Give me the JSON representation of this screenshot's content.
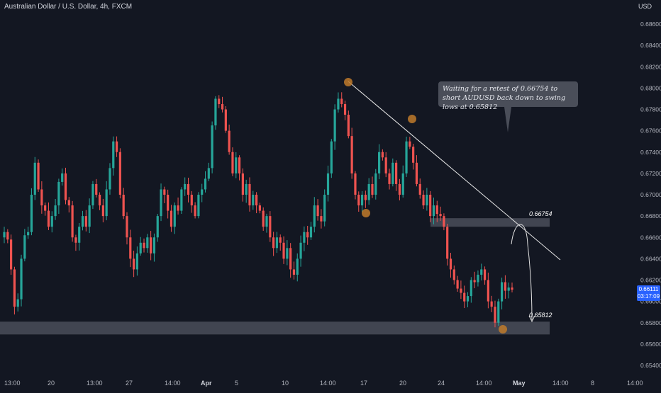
{
  "header": {
    "title": "Australian Dollar / U.S. Dollar, 4h, FXCM",
    "currency": "USD"
  },
  "price_tag": {
    "price": "0.66111",
    "countdown": "03:17:09"
  },
  "annotation": {
    "text": "Waiting for a retest of 0.66754 to short AUDUSD back down to swing lows at 0.65812"
  },
  "levels": [
    {
      "label": "0.66754",
      "value": 0.66754
    },
    {
      "label": "0.65812",
      "value": 0.65812
    }
  ],
  "colors": {
    "up": "#26a69a",
    "down": "#ef5350",
    "background": "#131722",
    "marker": "#c07a2a",
    "zone": "#4a4e59"
  },
  "chart_data": {
    "type": "candlestick",
    "symbol": "AUDUSD",
    "timeframe": "4h",
    "y_axis": {
      "ticks": [
        "0.68600",
        "0.68400",
        "0.68200",
        "0.68000",
        "0.67800",
        "0.67600",
        "0.67400",
        "0.67200",
        "0.67000",
        "0.66800",
        "0.66600",
        "0.66400",
        "0.66200",
        "0.66000",
        "0.65800",
        "0.65600",
        "0.65400"
      ],
      "ylim": [
        0.653,
        0.688
      ]
    },
    "x_axis": {
      "ticks": [
        "13:00",
        "20",
        "13:00",
        "27",
        "14:00",
        "Apr",
        "5",
        "10",
        "14:00",
        "17",
        "20",
        "24",
        "14:00",
        "May",
        "14:00",
        "8",
        "14:00"
      ],
      "bold_ticks": [
        "Apr",
        "May"
      ]
    },
    "close_price_path": [
      [
        0.6665,
        0.6658,
        0.663,
        0.6595,
        0.6602,
        0.664,
        0.6662,
        0.6665,
        0.67,
        0.673,
        0.6705,
        0.669,
        0.6685,
        0.667,
        0.668,
        0.669,
        0.6712,
        0.672,
        0.6695,
        0.669,
        0.666,
        0.6655,
        0.667,
        0.668,
        0.667,
        0.669,
        0.671,
        0.67,
        0.669,
        0.668
      ],
      [
        0.6705,
        0.6725,
        0.675,
        0.674,
        0.67,
        0.668,
        0.666,
        0.664,
        0.663,
        0.6645,
        0.6655,
        0.665,
        0.666,
        0.6645,
        0.666,
        0.668,
        0.6705,
        0.67,
        0.6685,
        0.667,
        0.669,
        0.6685,
        0.6705,
        0.671,
        0.67,
        0.669,
        0.668,
        0.67,
        0.6705,
        0.6715
      ],
      [
        0.6725,
        0.6765,
        0.679,
        0.6785,
        0.678,
        0.676,
        0.674,
        0.672,
        0.6735,
        0.672,
        0.67,
        0.671,
        0.669,
        0.67,
        0.669,
        0.6685,
        0.667,
        0.668,
        0.666,
        0.665,
        0.666,
        0.6655,
        0.664,
        0.665,
        0.663,
        0.6625,
        0.664,
        0.6655,
        0.6665,
        0.666
      ],
      [
        0.667,
        0.669,
        0.668,
        0.6675,
        0.67,
        0.672,
        0.675,
        0.678,
        0.679,
        0.6785,
        0.6775,
        0.6755,
        0.672,
        0.67,
        0.669,
        0.67,
        0.6695,
        0.671,
        0.67,
        0.672,
        0.674,
        0.6735,
        0.672,
        0.671,
        0.673,
        0.671,
        0.67,
        0.672,
        0.675,
        0.6745
      ],
      [
        0.673,
        0.671,
        0.67,
        0.669,
        0.67,
        0.668,
        0.669,
        0.6682,
        0.668,
        0.667,
        0.664,
        0.663,
        0.662,
        0.6612,
        0.6608,
        0.66,
        0.6605,
        0.662,
        0.6618,
        0.6625,
        0.663,
        0.662,
        0.66,
        0.6595,
        0.658,
        0.66,
        0.6618,
        0.661,
        0.6613,
        0.6611
      ]
    ],
    "horizontal_zones": [
      {
        "label": "0.66754",
        "from": 0.667,
        "to": 0.6678
      },
      {
        "label": "0.65812",
        "from": 0.6569,
        "to": 0.6581
      }
    ],
    "grid": false
  }
}
